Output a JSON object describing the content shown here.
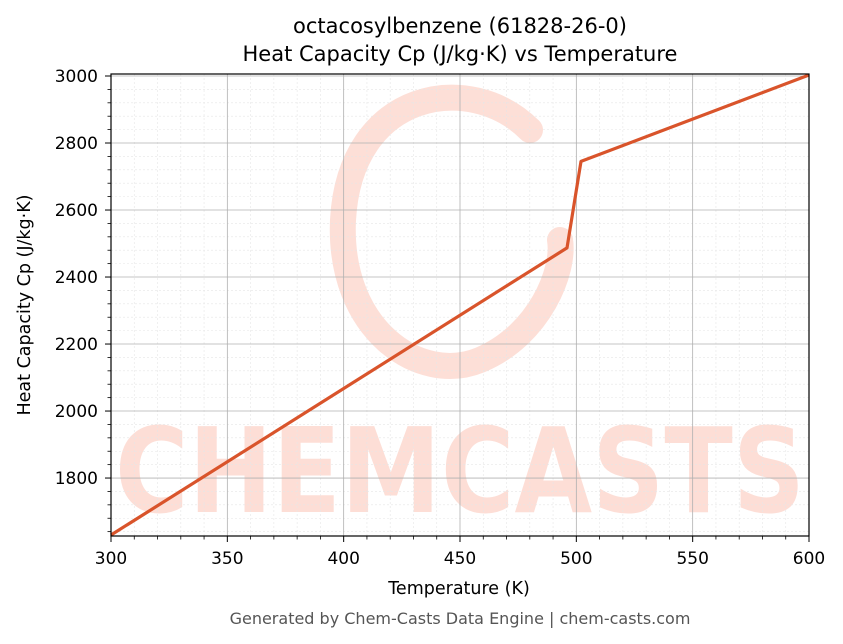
{
  "chart_data": {
    "type": "line",
    "title": "octacosylbenzene (61828-26-0)",
    "subtitle": "Heat Capacity Cp (J/kg·K) vs Temperature",
    "xlabel": "Temperature (K)",
    "ylabel": "Heat Capacity Cp (J/kg·K)",
    "xlim": [
      300,
      600
    ],
    "ylim": [
      1627,
      3006
    ],
    "x_ticks": [
      300,
      350,
      400,
      450,
      500,
      550,
      600
    ],
    "y_ticks": [
      1800,
      2000,
      2200,
      2400,
      2600,
      2800,
      3000
    ],
    "grid": true,
    "legend": "none",
    "series": [
      {
        "color": "#d9542b",
        "x": [
          300,
          496,
          502,
          600
        ],
        "y": [
          1630,
          2487,
          2745,
          3003
        ]
      }
    ]
  },
  "footer": "Generated by Chem-Casts Data Engine | chem-casts.com",
  "watermark": {
    "text": "CHEMCASTS",
    "color": "#fdd9d0"
  }
}
